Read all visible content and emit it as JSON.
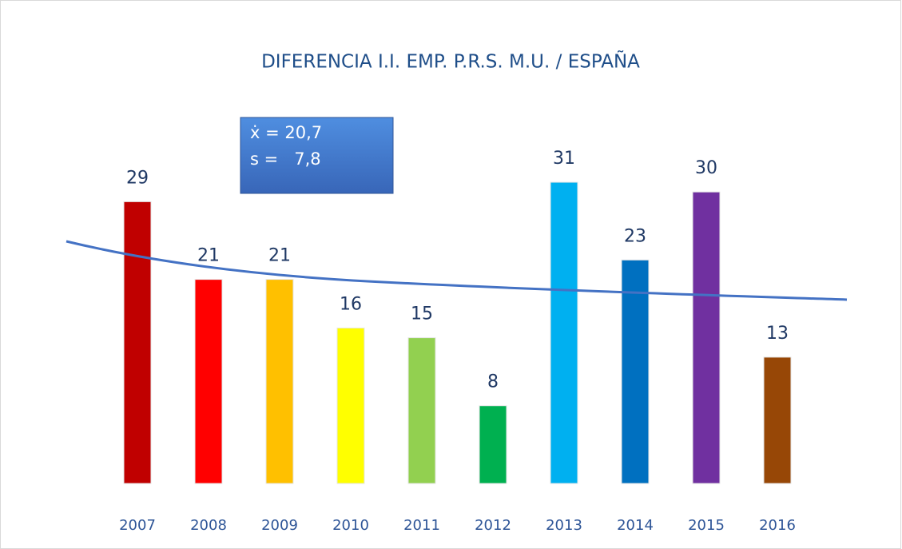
{
  "chart_data": {
    "type": "bar",
    "title": "DIFERENCIA I.I. EMP. P.R.S. M.U. / ESPAÑA",
    "categories": [
      "2007",
      "2008",
      "2009",
      "2010",
      "2011",
      "2012",
      "2013",
      "2014",
      "2015",
      "2016"
    ],
    "values": [
      29,
      21,
      21,
      16,
      15,
      8,
      31,
      23,
      30,
      13
    ],
    "colors": [
      "#c00000",
      "#ff0000",
      "#ffc000",
      "#ffff00",
      "#92d050",
      "#00b050",
      "#00b0f0",
      "#0070c0",
      "#7030a0",
      "#974706"
    ],
    "annotations": [
      "ẋ = 20,7",
      "s =   7,8"
    ]
  }
}
